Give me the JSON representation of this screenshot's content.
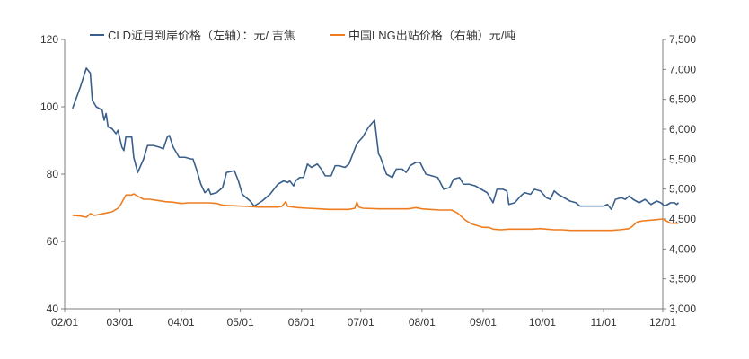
{
  "chart_data": {
    "type": "line",
    "title": "",
    "xlabel": "",
    "ylabel_left": "",
    "ylabel_right": "",
    "grid": false,
    "legend_position": "top-center",
    "x_axis": {
      "ticks": [
        "02/01",
        "03/01",
        "04/01",
        "05/01",
        "06/01",
        "07/01",
        "08/01",
        "09/01",
        "10/01",
        "11/01",
        "12/01"
      ],
      "range": [
        "02/01",
        "12/01"
      ]
    },
    "y_left": {
      "range": [
        40,
        120
      ],
      "ticks": [
        40,
        60,
        80,
        100,
        120
      ],
      "tick_labels": [
        "40",
        "60",
        "80",
        "100",
        "120"
      ]
    },
    "y_right": {
      "range": [
        3000,
        7500
      ],
      "ticks": [
        3000,
        3500,
        4000,
        4500,
        5000,
        5500,
        6000,
        6500,
        7000,
        7500
      ],
      "tick_labels": [
        "3,000",
        "3,500",
        "4,000",
        "4,500",
        "5,000",
        "5,500",
        "6,000",
        "6,500",
        "7,000",
        "7,500"
      ]
    },
    "series": [
      {
        "name": "CLD近月到岸价格（左轴）：元/ 吉焦",
        "axis": "left",
        "color": "#3a5f8a",
        "points": [
          [
            "02/05",
            99.5
          ],
          [
            "02/09",
            106
          ],
          [
            "02/12",
            111.5
          ],
          [
            "02/14",
            110
          ],
          [
            "02/15",
            102
          ],
          [
            "02/17",
            100
          ],
          [
            "02/20",
            99
          ],
          [
            "02/21",
            96
          ],
          [
            "02/22",
            98
          ],
          [
            "02/23",
            94
          ],
          [
            "02/25",
            93.5
          ],
          [
            "02/27",
            92
          ],
          [
            "02/28",
            93
          ],
          [
            "03/02",
            88
          ],
          [
            "03/03",
            87
          ],
          [
            "03/04",
            91
          ],
          [
            "03/07",
            91
          ],
          [
            "03/08",
            85
          ],
          [
            "03/10",
            80.5
          ],
          [
            "03/13",
            84.5
          ],
          [
            "03/15",
            88.5
          ],
          [
            "03/18",
            88.5
          ],
          [
            "03/21",
            88
          ],
          [
            "03/23",
            87.5
          ],
          [
            "03/25",
            91
          ],
          [
            "03/26",
            91.5
          ],
          [
            "03/28",
            88
          ],
          [
            "03/31",
            85
          ],
          [
            "04/03",
            85
          ],
          [
            "04/06",
            84.5
          ],
          [
            "04/07",
            84.5
          ],
          [
            "04/09",
            81
          ],
          [
            "04/11",
            77
          ],
          [
            "04/13",
            74.5
          ],
          [
            "04/15",
            75.5
          ],
          [
            "04/16",
            74
          ],
          [
            "04/19",
            74.5
          ],
          [
            "04/22",
            76
          ],
          [
            "04/24",
            80.5
          ],
          [
            "04/28",
            81
          ],
          [
            "04/30",
            78
          ],
          [
            "05/02",
            74
          ],
          [
            "05/06",
            72
          ],
          [
            "05/08",
            70.5
          ],
          [
            "05/12",
            72
          ],
          [
            "05/16",
            74
          ],
          [
            "05/20",
            77
          ],
          [
            "05/23",
            78
          ],
          [
            "05/25",
            77.5
          ],
          [
            "05/26",
            78
          ],
          [
            "05/28",
            76.5
          ],
          [
            "05/29",
            78
          ],
          [
            "05/31",
            79
          ],
          [
            "06/02",
            79
          ],
          [
            "06/04",
            83
          ],
          [
            "06/06",
            82
          ],
          [
            "06/09",
            83
          ],
          [
            "06/11",
            81.5
          ],
          [
            "06/13",
            79.5
          ],
          [
            "06/16",
            79.5
          ],
          [
            "06/18",
            82.5
          ],
          [
            "06/20",
            82.5
          ],
          [
            "06/23",
            82
          ],
          [
            "06/25",
            83
          ],
          [
            "06/27",
            86
          ],
          [
            "06/29",
            89
          ],
          [
            "07/02",
            91
          ],
          [
            "07/05",
            94
          ],
          [
            "07/08",
            96
          ],
          [
            "07/10",
            86
          ],
          [
            "07/11",
            85
          ],
          [
            "07/14",
            80
          ],
          [
            "07/17",
            79
          ],
          [
            "07/19",
            81.5
          ],
          [
            "07/22",
            81.5
          ],
          [
            "07/24",
            80.5
          ],
          [
            "07/26",
            82.5
          ],
          [
            "07/29",
            83.5
          ],
          [
            "07/31",
            83.5
          ],
          [
            "08/03",
            80
          ],
          [
            "08/06",
            79.5
          ],
          [
            "08/09",
            79
          ],
          [
            "08/12",
            75.5
          ],
          [
            "08/15",
            76
          ],
          [
            "08/17",
            78.5
          ],
          [
            "08/20",
            79
          ],
          [
            "08/22",
            77
          ],
          [
            "08/25",
            77
          ],
          [
            "08/28",
            76.5
          ],
          [
            "08/31",
            75.5
          ],
          [
            "09/03",
            74.5
          ],
          [
            "09/06",
            71.5
          ],
          [
            "09/08",
            75.5
          ],
          [
            "09/11",
            75.5
          ],
          [
            "09/13",
            75
          ],
          [
            "09/14",
            71
          ],
          [
            "09/17",
            71.5
          ],
          [
            "09/20",
            73.5
          ],
          [
            "09/22",
            74.5
          ],
          [
            "09/25",
            74
          ],
          [
            "09/27",
            75.5
          ],
          [
            "09/30",
            75
          ],
          [
            "10/03",
            73
          ],
          [
            "10/05",
            72.5
          ],
          [
            "10/07",
            75
          ],
          [
            "10/09",
            74
          ],
          [
            "10/12",
            73
          ],
          [
            "10/15",
            72
          ],
          [
            "10/18",
            71.5
          ],
          [
            "10/20",
            70.5
          ],
          [
            "10/24",
            70.5
          ],
          [
            "10/28",
            70.5
          ],
          [
            "11/01",
            70.5
          ],
          [
            "11/03",
            71
          ],
          [
            "11/05",
            69.5
          ],
          [
            "11/07",
            72.5
          ],
          [
            "11/10",
            73
          ],
          [
            "11/12",
            72.5
          ],
          [
            "11/14",
            73.5
          ],
          [
            "11/16",
            72.5
          ],
          [
            "11/19",
            71.5
          ],
          [
            "11/22",
            72.5
          ],
          [
            "11/25",
            71
          ],
          [
            "11/28",
            72
          ],
          [
            "11/30",
            71.5
          ],
          [
            "12/02",
            70.5
          ],
          [
            "12/05",
            71.5
          ],
          [
            "12/07",
            71.5
          ],
          [
            "12/08",
            71
          ],
          [
            "12/09",
            71.5
          ]
        ]
      },
      {
        "name": "中国LNG出站价格（右轴）元/吨",
        "axis": "right",
        "color": "#ee7d20",
        "points": [
          [
            "02/05",
            4560
          ],
          [
            "02/09",
            4550
          ],
          [
            "02/12",
            4530
          ],
          [
            "02/14",
            4590
          ],
          [
            "02/16",
            4560
          ],
          [
            "02/19",
            4580
          ],
          [
            "02/22",
            4600
          ],
          [
            "02/25",
            4620
          ],
          [
            "02/28",
            4680
          ],
          [
            "03/01",
            4720
          ],
          [
            "03/04",
            4900
          ],
          [
            "03/07",
            4900
          ],
          [
            "03/08",
            4920
          ],
          [
            "03/10",
            4880
          ],
          [
            "03/13",
            4830
          ],
          [
            "03/16",
            4830
          ],
          [
            "03/20",
            4810
          ],
          [
            "03/24",
            4790
          ],
          [
            "03/28",
            4780
          ],
          [
            "04/01",
            4760
          ],
          [
            "04/05",
            4770
          ],
          [
            "04/10",
            4770
          ],
          [
            "04/15",
            4770
          ],
          [
            "04/19",
            4760
          ],
          [
            "04/22",
            4730
          ],
          [
            "04/28",
            4720
          ],
          [
            "05/05",
            4710
          ],
          [
            "05/10",
            4700
          ],
          [
            "05/15",
            4700
          ],
          [
            "05/20",
            4700
          ],
          [
            "05/22",
            4710
          ],
          [
            "05/24",
            4790
          ],
          [
            "05/25",
            4710
          ],
          [
            "05/30",
            4690
          ],
          [
            "06/04",
            4680
          ],
          [
            "06/10",
            4670
          ],
          [
            "06/15",
            4660
          ],
          [
            "06/20",
            4660
          ],
          [
            "06/25",
            4660
          ],
          [
            "06/28",
            4680
          ],
          [
            "06/29",
            4780
          ],
          [
            "06/30",
            4700
          ],
          [
            "07/02",
            4680
          ],
          [
            "07/10",
            4670
          ],
          [
            "07/20",
            4670
          ],
          [
            "07/25",
            4670
          ],
          [
            "07/29",
            4690
          ],
          [
            "08/01",
            4670
          ],
          [
            "08/05",
            4660
          ],
          [
            "08/10",
            4650
          ],
          [
            "08/16",
            4650
          ],
          [
            "08/19",
            4600
          ],
          [
            "08/23",
            4480
          ],
          [
            "08/26",
            4420
          ],
          [
            "08/29",
            4390
          ],
          [
            "09/01",
            4360
          ],
          [
            "09/04",
            4360
          ],
          [
            "09/06",
            4330
          ],
          [
            "09/10",
            4320
          ],
          [
            "09/14",
            4330
          ],
          [
            "09/18",
            4330
          ],
          [
            "09/22",
            4330
          ],
          [
            "09/26",
            4330
          ],
          [
            "09/30",
            4340
          ],
          [
            "10/03",
            4330
          ],
          [
            "10/07",
            4320
          ],
          [
            "10/11",
            4320
          ],
          [
            "10/15",
            4310
          ],
          [
            "10/19",
            4310
          ],
          [
            "10/24",
            4310
          ],
          [
            "10/28",
            4310
          ],
          [
            "11/01",
            4310
          ],
          [
            "11/05",
            4310
          ],
          [
            "11/09",
            4320
          ],
          [
            "11/12",
            4330
          ],
          [
            "11/14",
            4340
          ],
          [
            "11/16",
            4390
          ],
          [
            "11/18",
            4450
          ],
          [
            "11/21",
            4470
          ],
          [
            "11/25",
            4480
          ],
          [
            "11/28",
            4490
          ],
          [
            "12/01",
            4500
          ],
          [
            "12/05",
            4430
          ],
          [
            "12/09",
            4430
          ]
        ]
      }
    ]
  }
}
